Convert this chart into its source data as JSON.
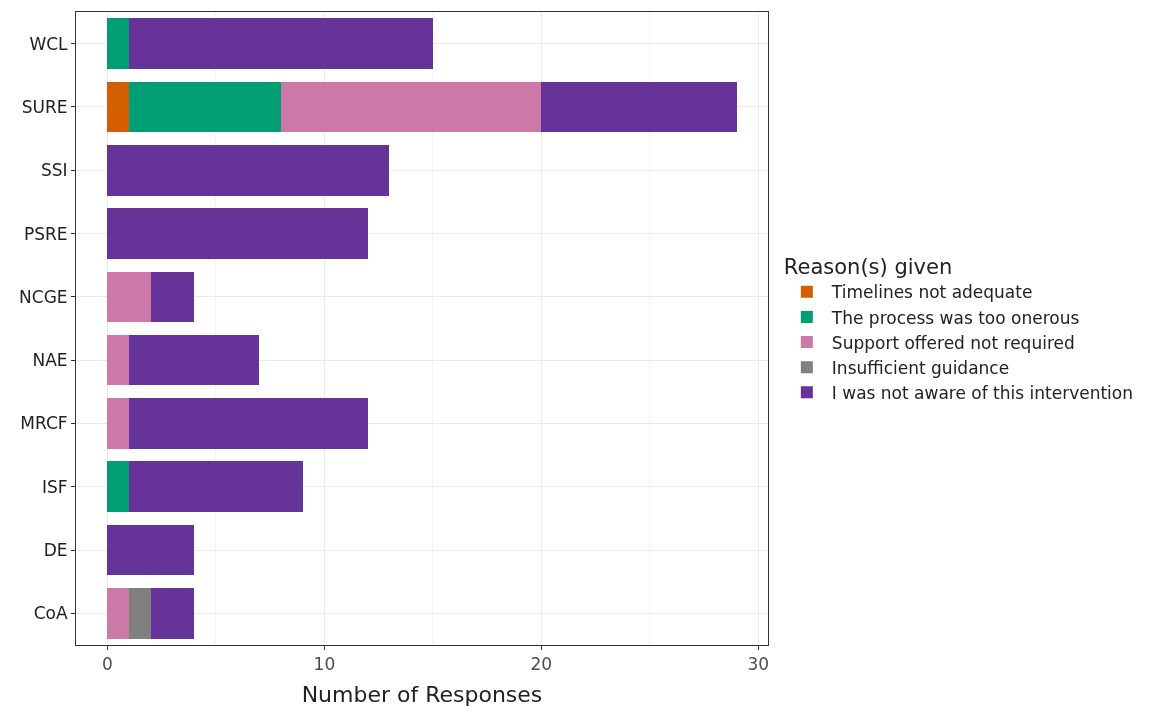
{
  "chart_data": {
    "type": "bar",
    "orientation": "horizontal",
    "stacked": true,
    "xlabel": "Number of Responses",
    "legend_title": "Reason(s) given",
    "legend": "right",
    "grid": true,
    "categories": [
      "WCL",
      "SURE",
      "SSI",
      "PSRE",
      "NCGE",
      "NAE",
      "MRCF",
      "ISF",
      "DE",
      "CoA"
    ],
    "xlim": [
      -1.45,
      30.45
    ],
    "xticks": [
      0,
      10,
      20,
      30
    ],
    "series": [
      {
        "name": "Timelines not adequate",
        "color": "#d55e00",
        "values": [
          0,
          1,
          0,
          0,
          0,
          0,
          0,
          0,
          0,
          0
        ]
      },
      {
        "name": "The process was too onerous",
        "color": "#009e73",
        "values": [
          1,
          7,
          0,
          0,
          0,
          0,
          0,
          1,
          0,
          0
        ]
      },
      {
        "name": "Support offered not required",
        "color": "#cc79a7",
        "values": [
          0,
          12,
          0,
          0,
          2,
          1,
          1,
          0,
          0,
          1
        ]
      },
      {
        "name": "Insufficient guidance",
        "color": "#808080",
        "values": [
          0,
          0,
          0,
          0,
          0,
          0,
          0,
          0,
          0,
          1
        ]
      },
      {
        "name": "I was not aware of this intervention",
        "color": "#663399",
        "values": [
          14,
          9,
          13,
          12,
          2,
          6,
          11,
          8,
          4,
          2
        ]
      }
    ]
  }
}
